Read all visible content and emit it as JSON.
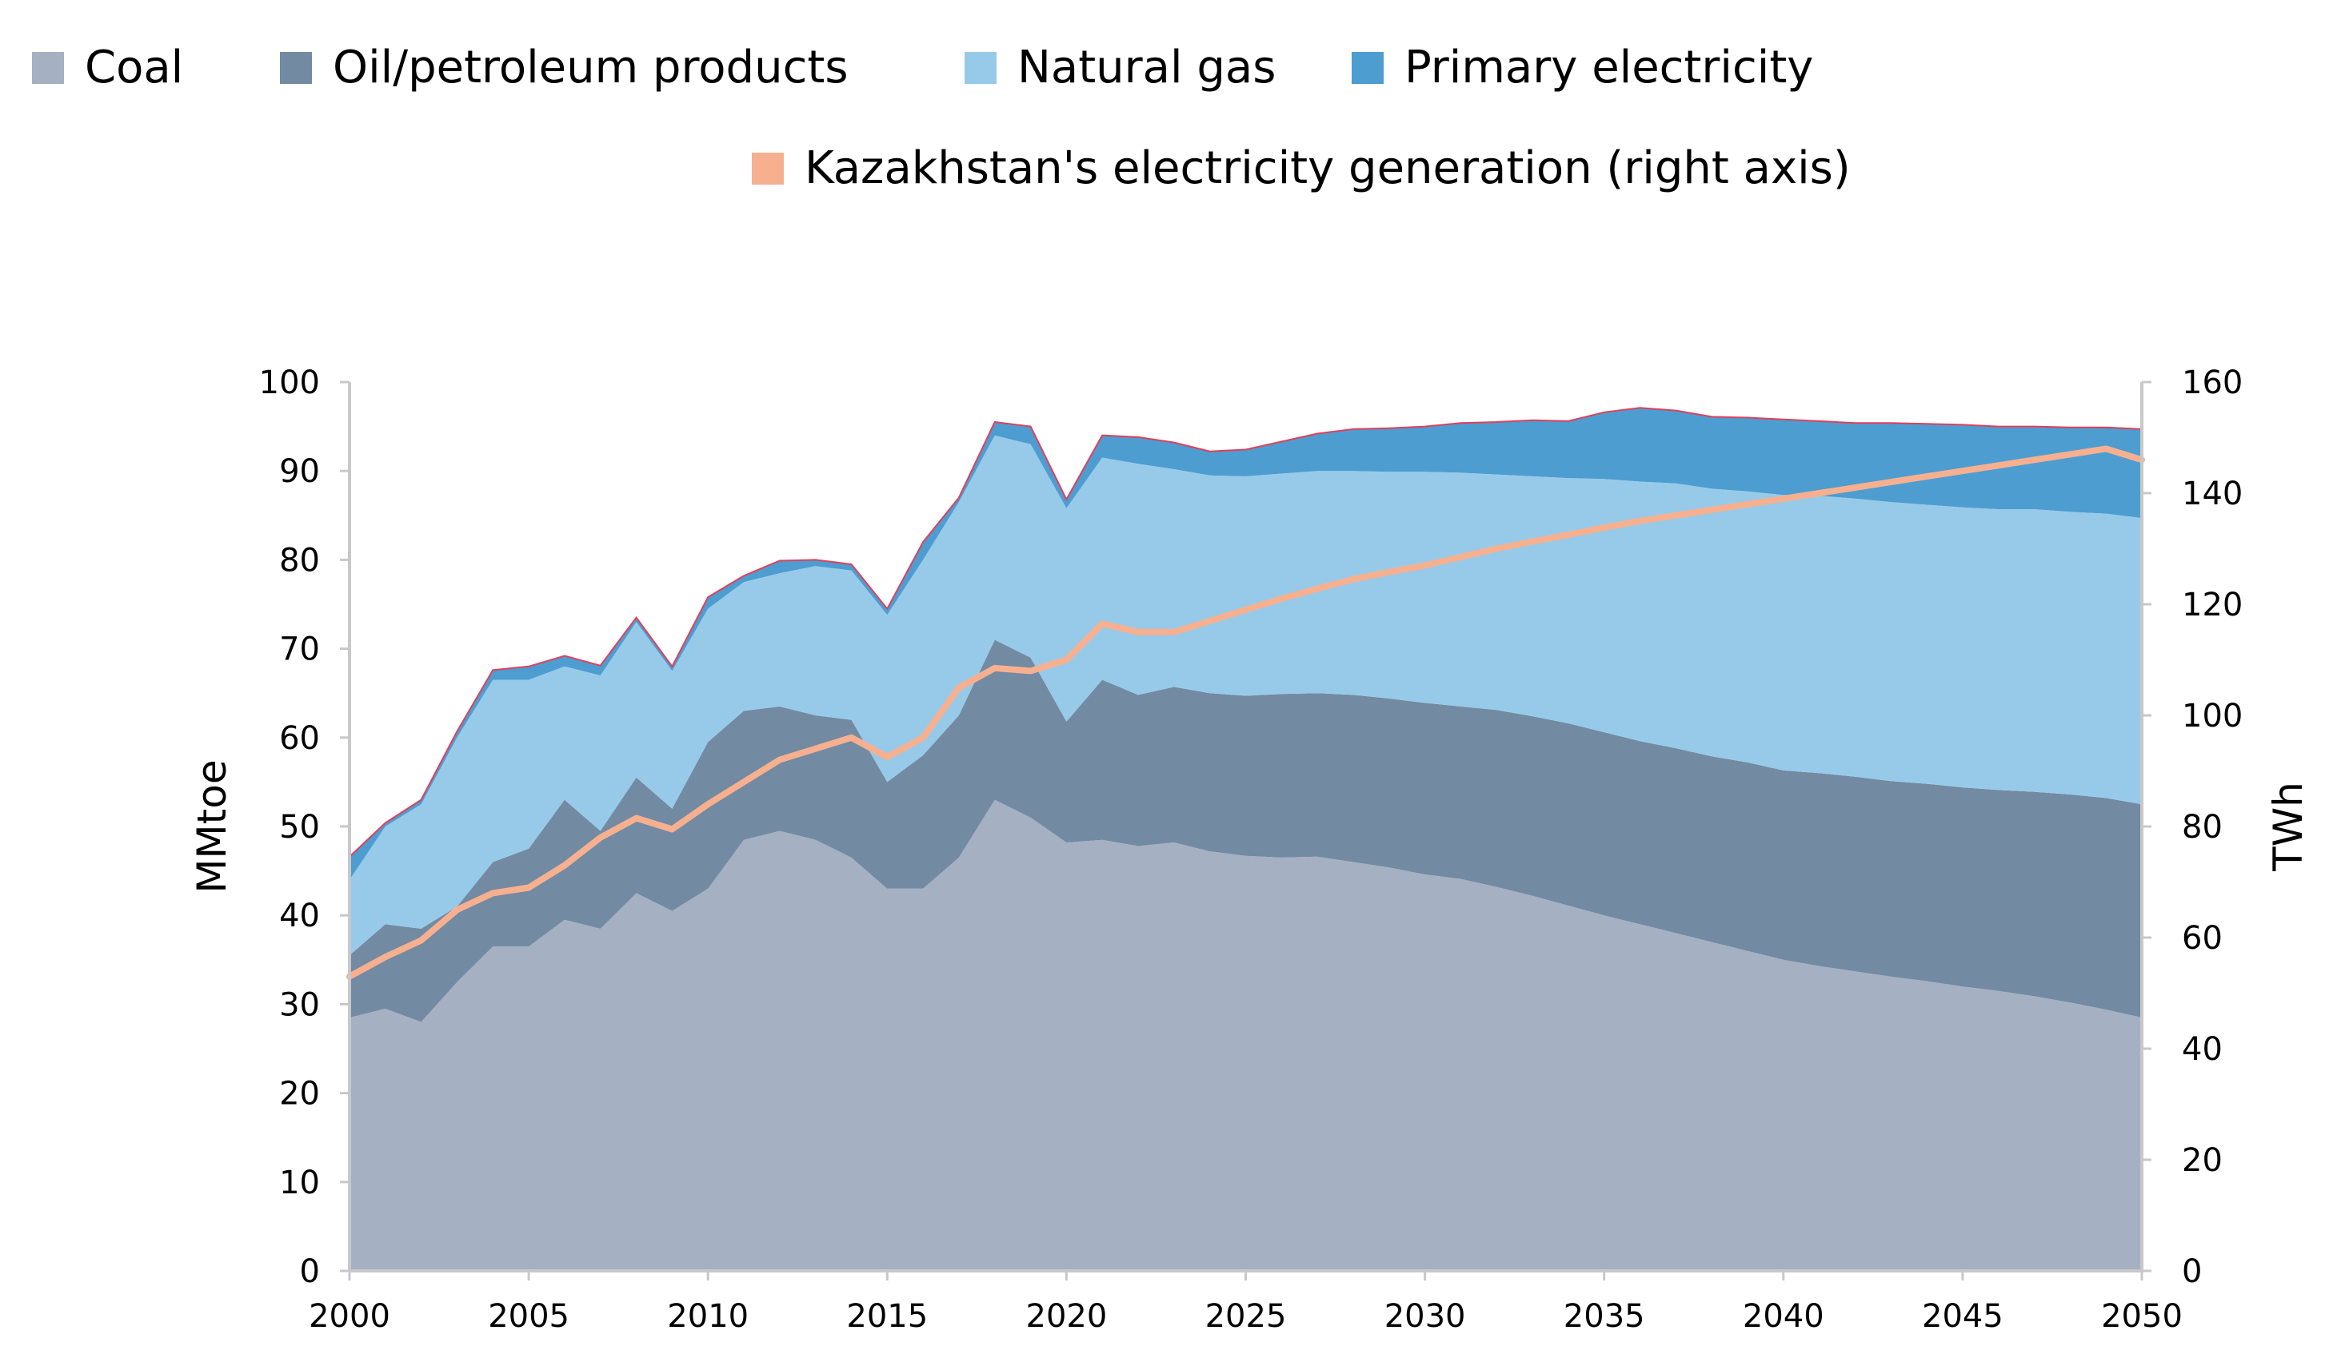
{
  "chart_data": {
    "type": "area",
    "title": "",
    "ylabel": "MMtoe",
    "y2label": "TWh",
    "ylim": [
      0,
      100
    ],
    "y2lim": [
      0,
      160
    ],
    "yticks": [
      "0",
      "10",
      "20",
      "30",
      "40",
      "50",
      "60",
      "70",
      "80",
      "90",
      "100"
    ],
    "y2ticks": [
      "0",
      "20",
      "40",
      "60",
      "80",
      "100",
      "120",
      "140",
      "160"
    ],
    "xticks": [
      "2000",
      "2005",
      "2010",
      "2015",
      "2020",
      "2025",
      "2030",
      "2035",
      "2040",
      "2045",
      "2050"
    ],
    "x": [
      2000,
      2001,
      2002,
      2003,
      2004,
      2005,
      2006,
      2007,
      2008,
      2009,
      2010,
      2011,
      2012,
      2013,
      2014,
      2015,
      2016,
      2017,
      2018,
      2019,
      2020,
      2021,
      2022,
      2023,
      2024,
      2025,
      2026,
      2027,
      2028,
      2029,
      2030,
      2031,
      2032,
      2033,
      2034,
      2035,
      2036,
      2037,
      2038,
      2039,
      2040,
      2041,
      2042,
      2043,
      2044,
      2045,
      2046,
      2047,
      2048,
      2049,
      2050
    ],
    "series": [
      {
        "name": "Coal",
        "color": "#a5b0c2",
        "values": [
          28.5,
          29.5,
          28,
          32.5,
          36.5,
          36.5,
          39.5,
          38.5,
          42.5,
          40.5,
          43,
          48.5,
          49.5,
          48.5,
          46.5,
          43,
          43,
          46.5,
          53,
          51,
          48.2,
          48.5,
          47.8,
          48.2,
          47.2,
          46.7,
          46.5,
          46.6,
          46,
          45.4,
          44.6,
          44.1,
          43.2,
          42.2,
          41.1,
          40,
          39,
          38,
          37,
          36,
          35,
          34.3,
          33.7,
          33.1,
          32.6,
          32,
          31.5,
          30.9,
          30.2,
          29.4,
          28.5
        ]
      },
      {
        "name": "Oil/petroleum products",
        "color": "#728aa2",
        "values": [
          7,
          9.5,
          10.5,
          8.5,
          9.5,
          11,
          13.5,
          11,
          13,
          11.5,
          16.5,
          14.5,
          14,
          14,
          15.5,
          12,
          15,
          16,
          18,
          18,
          13.6,
          18,
          17,
          17.5,
          17.8,
          18,
          18.4,
          18.4,
          18.8,
          19,
          19.3,
          19.4,
          19.9,
          20.2,
          20.5,
          20.6,
          20.6,
          20.8,
          20.9,
          21.2,
          21.3,
          21.7,
          21.9,
          22,
          22.2,
          22.4,
          22.6,
          23,
          23.4,
          23.8,
          24
        ]
      },
      {
        "name": "Natural gas",
        "color": "#97cae9",
        "values": [
          8.5,
          11,
          14,
          19,
          20.5,
          19,
          15,
          17.5,
          17.5,
          15.5,
          15,
          14.5,
          15,
          16.8,
          16.8,
          18.8,
          22,
          24,
          23,
          24,
          24,
          25,
          26,
          24.5,
          24.5,
          24.7,
          24.8,
          25,
          25.2,
          25.5,
          26,
          26.3,
          26.5,
          27,
          27.6,
          28.5,
          29.2,
          29.8,
          30.1,
          30.5,
          31,
          31.2,
          31.3,
          31.4,
          31.4,
          31.5,
          31.6,
          31.8,
          31.8,
          32,
          32.2
        ]
      },
      {
        "name": "Primary electricity",
        "color": "#4d9dd1",
        "values": [
          2.6,
          0.4,
          0.5,
          0.7,
          1.1,
          1.5,
          1.2,
          1.1,
          0.5,
          0.5,
          1.3,
          0.7,
          1.4,
          0.7,
          0.7,
          0.7,
          2,
          0.5,
          1.5,
          2,
          1,
          2.5,
          3,
          3,
          2.7,
          3,
          3.6,
          4.2,
          4.7,
          4.9,
          5.1,
          5.6,
          5.9,
          6.3,
          6.4,
          7.5,
          8.3,
          8.2,
          8.1,
          8.3,
          8.5,
          8.4,
          8.5,
          8.9,
          9.1,
          9.3,
          9.3,
          9.3,
          9.5,
          9.7,
          10
        ]
      },
      {
        "name": "Kazakhstan's electricity generation (right axis)",
        "color": "#f7b08f",
        "axis": "right",
        "values": [
          53,
          56.5,
          59.5,
          65,
          68,
          69,
          73,
          78,
          81.5,
          79.5,
          84,
          88,
          92,
          94,
          96,
          92.5,
          96,
          105,
          108.5,
          108,
          110,
          116.5,
          115,
          115,
          117,
          119,
          121,
          122.8,
          124.5,
          125.8,
          127,
          128.5,
          130,
          131.3,
          132.5,
          133.8,
          135,
          136,
          137,
          138,
          139,
          140,
          141,
          142,
          143,
          144,
          145,
          146,
          147,
          148,
          146
        ]
      }
    ]
  }
}
